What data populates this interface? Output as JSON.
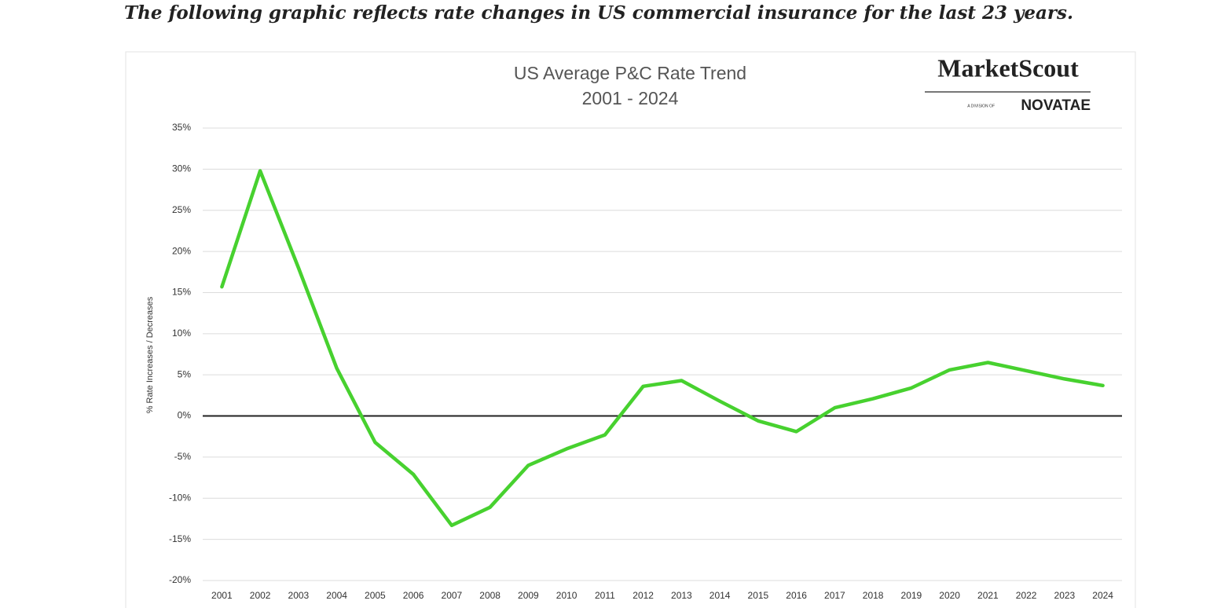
{
  "caption": "The following graphic reflects rate changes in US commercial insurance for the last 23 years.",
  "logo": {
    "name": "MarketScout",
    "division": "A DIVISION OF",
    "parent": "NOVATAE"
  },
  "chart_data": {
    "type": "line",
    "title": [
      "US Average P&C Rate Trend",
      "2001 - 2024"
    ],
    "y_label": "% Rate Increases / Decreases",
    "categories": [
      "2001",
      "2002",
      "2003",
      "2004",
      "2005",
      "2006",
      "2007",
      "2008",
      "2009",
      "2010",
      "2011",
      "2012",
      "2013",
      "2014",
      "2015",
      "2016",
      "2017",
      "2018",
      "2019",
      "2020",
      "2021",
      "2022",
      "2023",
      "2024"
    ],
    "values": [
      15.7,
      29.8,
      18,
      5.8,
      -3.2,
      -7.1,
      -13.3,
      -11.1,
      -6.0,
      -4.0,
      -2.3,
      3.6,
      4.3,
      1.8,
      -0.6,
      -1.9,
      1.0,
      2.1,
      3.4,
      5.6,
      6.5,
      5.5,
      4.5,
      3.7
    ],
    "color": "#47d12f",
    "ylim": [
      -20,
      35
    ],
    "yticks": [
      {
        "value": -20,
        "label": "-20%"
      },
      {
        "value": -15,
        "label": "-15%"
      },
      {
        "value": -10,
        "label": "-10%"
      },
      {
        "value": -5,
        "label": "-5%"
      },
      {
        "value": 0,
        "label": "0%"
      },
      {
        "value": 5,
        "label": "5%"
      },
      {
        "value": 10,
        "label": "10%"
      },
      {
        "value": 15,
        "label": "15%"
      },
      {
        "value": 20,
        "label": "20%"
      },
      {
        "value": 25,
        "label": "25%"
      },
      {
        "value": 30,
        "label": "30%"
      },
      {
        "value": 35,
        "label": "35%"
      }
    ],
    "grid": true
  }
}
